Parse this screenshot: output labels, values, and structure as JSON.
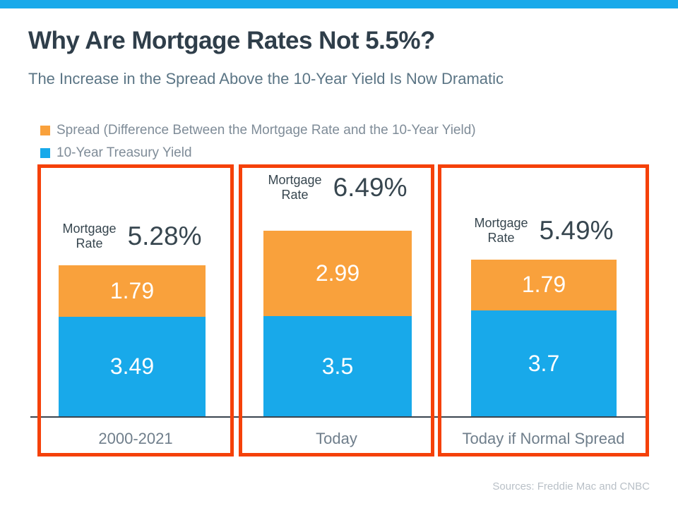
{
  "page": {
    "title": "Why Are Mortgage Rates Not 5.5%?",
    "subtitle": "The Increase in the Spread Above the 10-Year Yield Is Now Dramatic",
    "sources": "Sources: Freddie Mac and CNBC"
  },
  "colors": {
    "accent_blue": "#18A9EA",
    "accent_orange": "#F9A13C",
    "box_border": "#F54109"
  },
  "legend": {
    "items": [
      {
        "label": "Spread (Difference Between the Mortgage Rate and the 10-Year Yield)",
        "color": "#F9A13C"
      },
      {
        "label": "10-Year Treasury Yield",
        "color": "#18A9EA"
      }
    ]
  },
  "chart_data": {
    "type": "bar",
    "stacked": true,
    "categories": [
      "2000-2021",
      "Today",
      "Today if Normal Spread"
    ],
    "series": [
      {
        "name": "Spread (Difference Between the Mortgage Rate and the 10-Year Yield)",
        "color": "#F9A13C",
        "values": [
          1.79,
          2.99,
          1.79
        ],
        "labels": [
          "1.79",
          "2.99",
          "1.79"
        ]
      },
      {
        "name": "10-Year Treasury Yield",
        "color": "#18A9EA",
        "values": [
          3.49,
          3.5,
          3.7
        ],
        "labels": [
          "3.49",
          "3.5",
          "3.7"
        ]
      }
    ],
    "annotations": {
      "label_lines": [
        "Mortgage",
        "Rate"
      ],
      "totals": [
        "5.28%",
        "6.49%",
        "5.49%"
      ]
    },
    "ylim": [
      0,
      7
    ],
    "grid": false,
    "legend_position": "top-left",
    "xlabel": "",
    "ylabel": ""
  }
}
